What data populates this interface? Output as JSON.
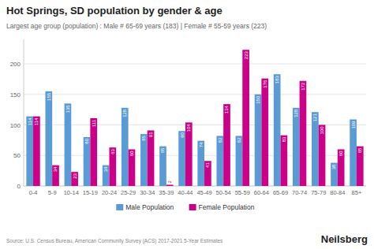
{
  "chart_data": {
    "type": "bar",
    "title": "Hot Springs, SD population by gender & age",
    "subtitle": "Largest age group (population) : Male # 65-69 years (183) | Female # 55-59 years (223)",
    "categories": [
      "0-4",
      "5-9",
      "10-14",
      "15-19",
      "20-24",
      "25-29",
      "30-34",
      "35-39",
      "40-44",
      "45-49",
      "50-54",
      "55-59",
      "60-64",
      "65-69",
      "70-74",
      "75-79",
      "80-84",
      "85+"
    ],
    "series": [
      {
        "name": "Male Population",
        "color": "#5b9bd5",
        "values": [
          114,
          155,
          135,
          80,
          34,
          128,
          85,
          65,
          90,
          74,
          82,
          82,
          150,
          183,
          128,
          121,
          38,
          109
        ]
      },
      {
        "name": "Female Population",
        "color": "#cc0088",
        "values": [
          114,
          34,
          23,
          111,
          63,
          60,
          91,
          2,
          104,
          41,
          134,
          223,
          176,
          83,
          172,
          100,
          60,
          65
        ]
      }
    ],
    "ylim": [
      0,
      240
    ],
    "yticks": [
      0,
      50,
      100,
      150,
      200
    ],
    "grid": true,
    "legend": "bottom",
    "data_labels": true,
    "annotations": [
      "Source: U.S. Census Bureau, American Community Survey (ACS) 2017-2021 5-Year Estimates",
      "Neilsberg"
    ]
  }
}
